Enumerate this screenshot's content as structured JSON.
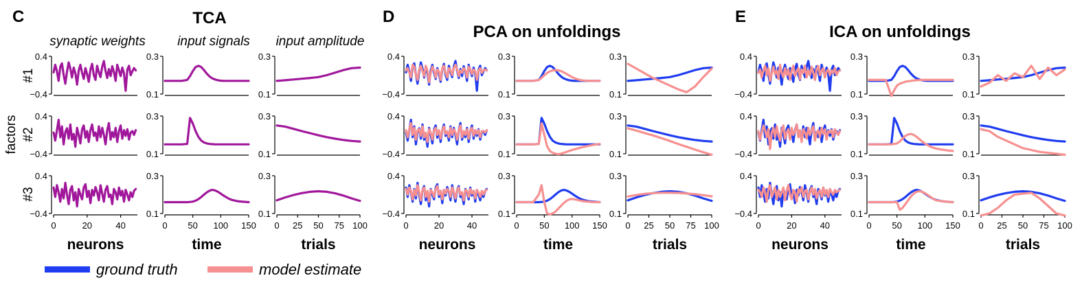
{
  "colors": {
    "ground_truth": "#1f3cf0",
    "model_estimate": "#f79090",
    "overlap": "#a0179b"
  },
  "legend": {
    "ground_truth": "ground truth",
    "model_estimate": "model estimate"
  },
  "ylabel": "factors",
  "rows": [
    "#1",
    "#2",
    "#3"
  ],
  "panels": [
    {
      "letter": "C",
      "title": "TCA",
      "col_titles": [
        "synaptic weights",
        "input signals",
        "input amplitude"
      ]
    },
    {
      "letter": "D",
      "title": "PCA on unfoldings",
      "col_titles": [
        "",
        "",
        ""
      ]
    },
    {
      "letter": "E",
      "title": "ICA on unfoldings",
      "col_titles": [
        "",
        "",
        ""
      ]
    }
  ],
  "columns": [
    {
      "xlabel": "neurons",
      "xlim": [
        0,
        50
      ],
      "xticks": [
        "0",
        "20",
        "40"
      ],
      "xtick_vals": [
        0,
        20,
        40
      ],
      "ylim": [
        -0.4,
        0.4
      ],
      "yticks": [
        "0.4",
        "−0.4"
      ]
    },
    {
      "xlabel": "time",
      "xlim": [
        0,
        150
      ],
      "xticks": [
        "0",
        "50",
        "100",
        "150"
      ],
      "xtick_vals": [
        0,
        50,
        100,
        150
      ],
      "ylim": [
        0.1,
        0.3
      ],
      "yticks": [
        "0.3",
        "0.1"
      ]
    },
    {
      "xlabel": "trials",
      "xlim": [
        0,
        100
      ],
      "xticks": [
        "0",
        "25",
        "50",
        "75",
        "100"
      ],
      "xtick_vals": [
        0,
        25,
        50,
        75,
        100
      ],
      "ylim": [
        0.1,
        0.3
      ],
      "yticks": [
        "0.3",
        "0.1"
      ]
    }
  ],
  "chart_data": {
    "type": "line",
    "series_names": [
      "ground truth",
      "model estimate"
    ],
    "ground_truth": {
      "neurons": [
        [
          0.06,
          0.22,
          0.08,
          -0.12,
          0.18,
          0.25,
          0.01,
          -0.18,
          0.07,
          0.27,
          0.14,
          -0.05,
          0.16,
          0.04,
          -0.2,
          0.1,
          0.22,
          0.05,
          -0.08,
          0.15,
          0.02,
          -0.14,
          0.12,
          0.24,
          0.0,
          -0.1,
          0.2,
          0.06,
          -0.04,
          0.18,
          0.3,
          0.09,
          -0.06,
          0.13,
          -0.02,
          0.19,
          0.07,
          -0.12,
          0.22,
          0.1,
          -0.02,
          0.16,
          0.04,
          -0.33,
          0.12,
          0.2,
          0.0,
          0.08,
          0.15,
          0.1
        ],
        [
          0.05,
          -0.12,
          0.1,
          0.32,
          -0.05,
          0.18,
          -0.2,
          0.06,
          0.14,
          -0.08,
          0.22,
          -0.1,
          0.02,
          -0.25,
          0.15,
          0.0,
          -0.18,
          0.12,
          0.2,
          -0.06,
          0.08,
          -0.15,
          0.1,
          0.22,
          -0.02,
          0.05,
          -0.12,
          0.18,
          -0.05,
          0.15,
          0.0,
          -0.2,
          0.1,
          0.25,
          -0.1,
          0.06,
          -0.05,
          0.15,
          -0.15,
          0.08,
          0.2,
          -0.08,
          0.1,
          -0.02,
          0.12,
          -0.1,
          0.05,
          0.08,
          0.0,
          0.1
        ],
        [
          0.15,
          -0.05,
          0.2,
          0.05,
          -0.15,
          0.12,
          -0.08,
          0.25,
          0.0,
          -0.2,
          0.1,
          0.18,
          -0.12,
          0.05,
          -0.25,
          0.12,
          0.0,
          -0.1,
          0.15,
          0.22,
          -0.05,
          0.08,
          -0.18,
          0.1,
          -0.02,
          0.16,
          0.05,
          -0.12,
          0.2,
          0.02,
          -0.15,
          0.1,
          0.18,
          -0.05,
          0.0,
          -0.2,
          0.12,
          0.05,
          -0.1,
          0.15,
          -0.02,
          0.08,
          -0.15,
          0.1,
          0.0,
          -0.12,
          0.05,
          -0.05,
          0.08,
          0.12
        ]
      ],
      "time": {
        "x": [
          0,
          10,
          20,
          30,
          40,
          45,
          50,
          55,
          60,
          65,
          70,
          75,
          80,
          85,
          90,
          95,
          100,
          105,
          110,
          115,
          120,
          130,
          140,
          150
        ],
        "factors": [
          [
            0.17,
            0.17,
            0.17,
            0.17,
            0.175,
            0.195,
            0.222,
            0.243,
            0.25,
            0.243,
            0.227,
            0.208,
            0.193,
            0.183,
            0.177,
            0.173,
            0.171,
            0.17,
            0.17,
            0.17,
            0.17,
            0.17,
            0.17,
            0.17
          ],
          [
            0.15,
            0.15,
            0.15,
            0.15,
            0.152,
            0.29,
            0.26,
            0.22,
            0.19,
            0.17,
            0.16,
            0.155,
            0.152,
            0.151,
            0.15,
            0.15,
            0.15,
            0.15,
            0.15,
            0.15,
            0.15,
            0.15,
            0.15,
            0.15
          ],
          [
            0.16,
            0.16,
            0.16,
            0.16,
            0.16,
            0.161,
            0.163,
            0.168,
            0.176,
            0.187,
            0.2,
            0.212,
            0.221,
            0.225,
            0.222,
            0.215,
            0.205,
            0.195,
            0.186,
            0.178,
            0.172,
            0.165,
            0.162,
            0.16
          ]
        ]
      },
      "trials": {
        "x": [
          0,
          10,
          20,
          30,
          40,
          50,
          60,
          70,
          80,
          90,
          100
        ],
        "factors": [
          [
            0.17,
            0.173,
            0.177,
            0.181,
            0.185,
            0.19,
            0.2,
            0.213,
            0.227,
            0.237,
            0.24
          ],
          [
            0.25,
            0.244,
            0.232,
            0.22,
            0.209,
            0.198,
            0.188,
            0.18,
            0.173,
            0.168,
            0.165
          ],
          [
            0.17,
            0.185,
            0.198,
            0.208,
            0.215,
            0.218,
            0.215,
            0.207,
            0.195,
            0.18,
            0.167
          ]
        ]
      }
    },
    "tca_model_estimate": "overlaps ground truth",
    "pca_model_estimate": {
      "neurons": [
        [
          0.1,
          0.15,
          0.05,
          -0.05,
          0.22,
          0.18,
          0.0,
          -0.1,
          0.12,
          0.2,
          0.08,
          -0.02,
          0.2,
          0.1,
          -0.15,
          0.05,
          0.18,
          0.1,
          -0.05,
          0.12,
          0.08,
          -0.1,
          0.15,
          0.2,
          0.05,
          -0.05,
          0.15,
          0.1,
          0.0,
          0.15,
          0.22,
          0.12,
          -0.02,
          0.1,
          0.05,
          0.15,
          0.1,
          -0.05,
          0.18,
          0.12,
          0.02,
          0.12,
          0.08,
          -0.1,
          0.1,
          0.15,
          0.05,
          0.1,
          0.12,
          0.1
        ],
        [
          0.1,
          -0.05,
          0.12,
          0.25,
          0.0,
          0.15,
          -0.1,
          0.1,
          0.12,
          -0.02,
          0.18,
          -0.05,
          0.05,
          -0.15,
          0.12,
          0.05,
          -0.1,
          0.1,
          0.15,
          0.0,
          0.1,
          -0.08,
          0.1,
          0.18,
          0.02,
          0.08,
          -0.05,
          0.15,
          0.0,
          0.12,
          0.05,
          -0.1,
          0.1,
          0.2,
          -0.05,
          0.08,
          0.0,
          0.12,
          -0.08,
          0.1,
          0.15,
          -0.02,
          0.1,
          0.02,
          0.1,
          -0.05,
          0.08,
          0.08,
          0.05,
          0.1
        ],
        [
          0.12,
          0.0,
          0.15,
          0.08,
          -0.1,
          0.1,
          -0.02,
          0.2,
          0.05,
          -0.12,
          0.1,
          0.15,
          -0.05,
          0.08,
          -0.15,
          0.1,
          0.05,
          -0.05,
          0.12,
          0.18,
          0.0,
          0.08,
          -0.1,
          0.1,
          0.02,
          0.12,
          0.08,
          -0.05,
          0.15,
          0.05,
          -0.08,
          0.1,
          0.15,
          0.0,
          0.05,
          -0.12,
          0.1,
          0.08,
          -0.05,
          0.12,
          0.02,
          0.08,
          -0.08,
          0.1,
          0.05,
          -0.05,
          0.08,
          0.0,
          0.08,
          0.1
        ]
      ],
      "time": [
        [
          0.17,
          0.17,
          0.17,
          0.17,
          0.175,
          0.185,
          0.2,
          0.212,
          0.22,
          0.225,
          0.227,
          0.226,
          0.222,
          0.215,
          0.207,
          0.198,
          0.19,
          0.183,
          0.178,
          0.174,
          0.172,
          0.17,
          0.17,
          0.17
        ],
        [
          0.15,
          0.15,
          0.15,
          0.15,
          0.152,
          0.26,
          0.2,
          0.14,
          0.115,
          0.105,
          0.1,
          0.098,
          0.1,
          0.105,
          0.11,
          0.115,
          0.12,
          0.124,
          0.128,
          0.132,
          0.136,
          0.142,
          0.148,
          0.152
        ],
        [
          0.16,
          0.16,
          0.16,
          0.16,
          0.2,
          0.25,
          0.16,
          0.1,
          0.095,
          0.1,
          0.11,
          0.125,
          0.14,
          0.155,
          0.167,
          0.175,
          0.177,
          0.175,
          0.172,
          0.168,
          0.165,
          0.162,
          0.16,
          0.16
        ]
      ],
      "trials": [
        [
          0.26,
          0.235,
          0.21,
          0.185,
          0.165,
          0.145,
          0.125,
          0.11,
          0.14,
          0.19,
          0.235
        ],
        [
          0.235,
          0.223,
          0.21,
          0.197,
          0.183,
          0.168,
          0.152,
          0.137,
          0.122,
          0.108,
          0.095
        ],
        [
          0.19,
          0.198,
          0.204,
          0.208,
          0.21,
          0.21,
          0.209,
          0.206,
          0.202,
          0.197,
          0.191
        ]
      ]
    },
    "ica_model_estimate": {
      "neurons": [
        [
          0.05,
          0.12,
          -0.05,
          0.1,
          0.2,
          0.0,
          0.15,
          -0.12,
          0.05,
          0.18,
          0.02,
          0.1,
          -0.08,
          0.22,
          0.05,
          -0.05,
          0.15,
          0.0,
          0.12,
          -0.1,
          0.1,
          0.2,
          -0.02,
          0.08,
          0.15,
          -0.08,
          0.12,
          0.05,
          0.2,
          -0.05,
          0.1,
          0.0,
          0.18,
          0.05,
          -0.1,
          0.12,
          0.2,
          0.0,
          0.1,
          0.15,
          -0.05,
          0.08,
          0.12,
          0.0,
          0.1,
          0.05,
          0.15,
          0.0,
          0.08,
          0.1
        ],
        [
          0.08,
          -0.1,
          0.05,
          0.2,
          0.1,
          -0.05,
          0.12,
          -0.3,
          0.05,
          0.15,
          -0.05,
          0.18,
          0.0,
          -0.12,
          0.1,
          0.2,
          -0.08,
          0.05,
          0.12,
          -0.1,
          0.15,
          0.0,
          0.08,
          0.22,
          -0.05,
          0.1,
          -0.15,
          0.12,
          0.05,
          -0.08,
          0.15,
          0.0,
          0.1,
          0.18,
          -0.12,
          0.05,
          0.1,
          -0.05,
          0.15,
          0.02,
          0.12,
          -0.1,
          0.08,
          0.05,
          0.1,
          -0.05,
          0.12,
          0.05,
          0.0,
          0.08
        ],
        [
          0.1,
          0.05,
          -0.05,
          0.15,
          0.05,
          -0.15,
          0.12,
          0.2,
          -0.05,
          0.05,
          0.15,
          -0.1,
          0.1,
          -0.05,
          0.05,
          0.15,
          -0.12,
          0.08,
          0.2,
          0.0,
          -0.1,
          0.1,
          0.05,
          -0.15,
          0.12,
          0.05,
          0.15,
          -0.05,
          0.08,
          0.1,
          -0.1,
          0.05,
          0.15,
          0.0,
          0.12,
          -0.08,
          0.05,
          0.1,
          -0.05,
          0.15,
          0.0,
          0.1,
          -0.05,
          0.12,
          0.05,
          0.0,
          0.1,
          0.05,
          0.08,
          0.1
        ]
      ],
      "time": [
        [
          0.175,
          0.175,
          0.175,
          0.175,
          0.05,
          0.12,
          0.145,
          0.155,
          0.16,
          0.165,
          0.168,
          0.17,
          0.172,
          0.173,
          0.174,
          0.175,
          0.175,
          0.175,
          0.175,
          0.175,
          0.175,
          0.175,
          0.175,
          0.175
        ],
        [
          0.15,
          0.15,
          0.15,
          0.15,
          0.15,
          0.152,
          0.155,
          0.165,
          0.18,
          0.195,
          0.202,
          0.205,
          0.2,
          0.19,
          0.178,
          0.165,
          0.155,
          0.145,
          0.138,
          0.132,
          0.128,
          0.122,
          0.118,
          0.115
        ],
        [
          0.16,
          0.16,
          0.16,
          0.16,
          0.16,
          0.16,
          0.16,
          0.12,
          0.13,
          0.15,
          0.17,
          0.19,
          0.205,
          0.215,
          0.218,
          0.215,
          0.208,
          0.198,
          0.188,
          0.178,
          0.17,
          0.165,
          0.162,
          0.16
        ]
      ],
      "trials": [
        [
          0.14,
          0.16,
          0.2,
          0.17,
          0.21,
          0.19,
          0.25,
          0.18,
          0.24,
          0.2,
          0.23
        ],
        [
          0.23,
          0.22,
          0.19,
          0.17,
          0.15,
          0.13,
          0.12,
          0.11,
          0.105,
          0.1,
          0.095
        ],
        [
          0.08,
          0.1,
          0.13,
          0.17,
          0.2,
          0.205,
          0.21,
          0.18,
          0.14,
          0.1,
          0.07
        ]
      ]
    }
  }
}
